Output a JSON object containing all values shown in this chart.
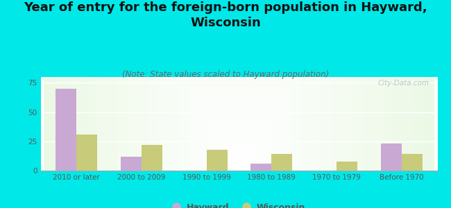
{
  "title": "Year of entry for the foreign-born population in Hayward,\nWisconsin",
  "subtitle": "(Note: State values scaled to Hayward population)",
  "categories": [
    "2010 or later",
    "2000 to 2009",
    "1990 to 1999",
    "1980 to 1989",
    "1970 to 1979",
    "Before 1970"
  ],
  "hayward_values": [
    70,
    12,
    0,
    6,
    0,
    23
  ],
  "wisconsin_values": [
    31,
    22,
    18,
    14,
    8,
    14
  ],
  "hayward_color": "#c9a8d4",
  "wisconsin_color": "#c8cb7a",
  "background_color": "#00e8e8",
  "ylim": [
    0,
    80
  ],
  "yticks": [
    0,
    25,
    50,
    75
  ],
  "title_fontsize": 13,
  "subtitle_fontsize": 8.5,
  "tick_fontsize": 7.5,
  "legend_fontsize": 9,
  "bar_width": 0.32,
  "watermark": "City-Data.com"
}
